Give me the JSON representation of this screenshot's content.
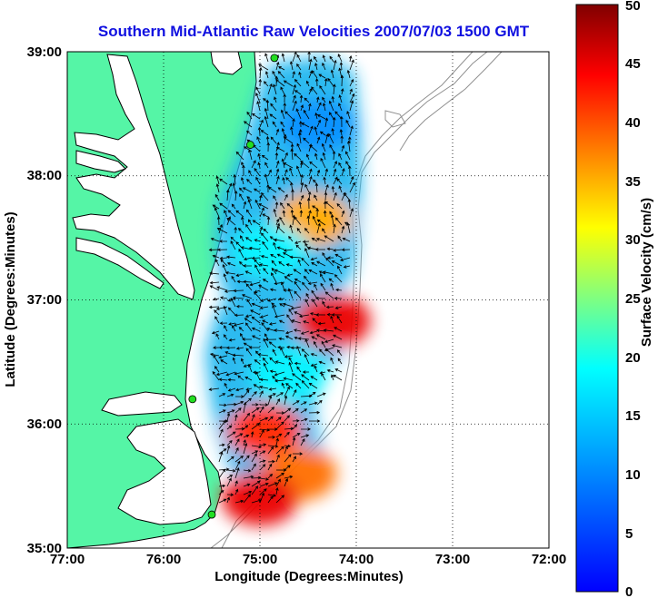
{
  "title": "Southern Mid-Atlantic Raw Velocities 2007/07/03 1500 GMT",
  "x_axis": {
    "label": "Longitude (Degrees:Minutes)",
    "ticks": [
      "77:00",
      "76:00",
      "75:00",
      "74:00",
      "73:00",
      "72:00"
    ],
    "range": [
      -77,
      -72
    ]
  },
  "y_axis": {
    "label": "Latitude (Degrees:Minutes)",
    "ticks": [
      "35:00",
      "36:00",
      "37:00",
      "38:00",
      "39:00"
    ],
    "range": [
      35,
      39
    ]
  },
  "colorbar": {
    "label": "Surface Velocity (cm/s)",
    "ticks": [
      "0",
      "5",
      "10",
      "15",
      "20",
      "25",
      "30",
      "35",
      "40",
      "45",
      "50"
    ],
    "range": [
      0,
      50
    ],
    "colormap": [
      "#0000ff",
      "#00ffff",
      "#ffff00",
      "#ff0000",
      "#800000"
    ]
  },
  "colors": {
    "land": "#55f5a6",
    "coast": "#000000",
    "bathymetry": "#909090",
    "station": "#22dd22",
    "grid": "#000000"
  },
  "grid": "dotted",
  "stations": [
    {
      "lon": -74.85,
      "lat": 38.95
    },
    {
      "lon": -75.1,
      "lat": 38.25
    },
    {
      "lon": -75.7,
      "lat": 36.2
    },
    {
      "lon": -75.5,
      "lat": 35.27
    }
  ],
  "velocity_regions": [
    {
      "lon": -74.4,
      "lat": 38.4,
      "speed": 10
    },
    {
      "lon": -74.45,
      "lat": 37.65,
      "speed": 35
    },
    {
      "lon": -74.9,
      "lat": 37.4,
      "speed": 18
    },
    {
      "lon": -74.25,
      "lat": 36.83,
      "speed": 45
    },
    {
      "lon": -74.7,
      "lat": 36.4,
      "speed": 18
    },
    {
      "lon": -74.95,
      "lat": 35.95,
      "speed": 42
    },
    {
      "lon": -74.6,
      "lat": 35.6,
      "speed": 38
    },
    {
      "lon": -75.0,
      "lat": 35.4,
      "speed": 45
    }
  ]
}
